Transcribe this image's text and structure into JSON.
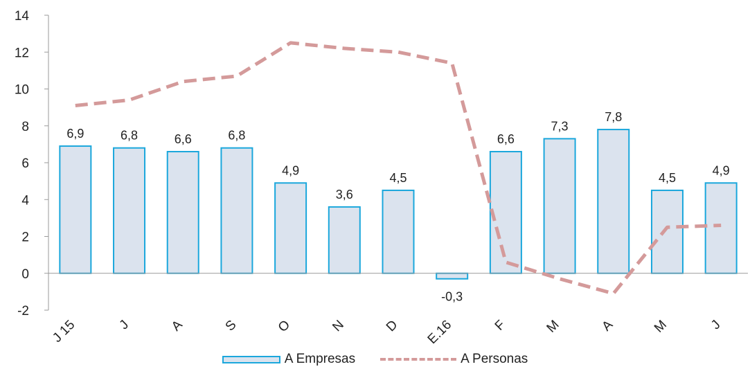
{
  "chart_data": {
    "type": "bar",
    "categories": [
      "J 15",
      "J",
      "A",
      "S",
      "O",
      "N",
      "D",
      "E.16",
      "F",
      "M",
      "A",
      "M",
      "J"
    ],
    "series": [
      {
        "name": "A Empresas",
        "type": "bar",
        "values": [
          6.9,
          6.8,
          6.6,
          6.8,
          4.9,
          3.6,
          4.5,
          -0.3,
          6.6,
          7.3,
          7.8,
          4.5,
          4.9
        ],
        "labels": [
          "6,9",
          "6,8",
          "6,6",
          "6,8",
          "4,9",
          "3,6",
          "4,5",
          "-0,3",
          "6,6",
          "7,3",
          "7,8",
          "4,5",
          "4,9"
        ],
        "color": "#dbe3ee",
        "border_color": "#1aa7dc"
      },
      {
        "name": "A Personas",
        "type": "line",
        "style": "dashed",
        "values": [
          9.1,
          9.4,
          10.4,
          10.7,
          12.5,
          12.2,
          12.0,
          11.4,
          0.6,
          -0.3,
          -1.1,
          2.5,
          2.6
        ],
        "color": "#d49a9a"
      }
    ],
    "ylim": [
      -2,
      14
    ],
    "yticks": [
      -2,
      0,
      2,
      4,
      6,
      8,
      10,
      12,
      14
    ],
    "legend_position": "bottom",
    "grid": false
  }
}
